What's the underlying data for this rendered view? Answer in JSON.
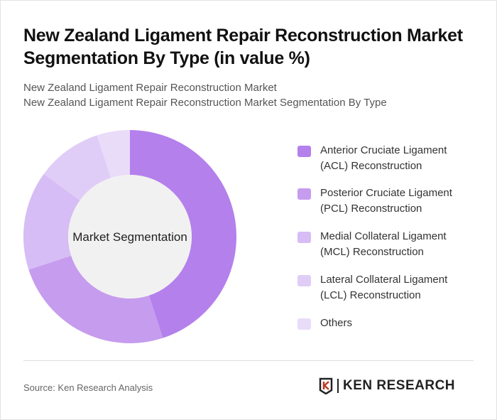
{
  "title": "New Zealand Ligament Repair Reconstruction Market Segmentation By Type (in value %)",
  "subtitle1": "New Zealand Ligament Repair Reconstruction Market",
  "subtitle2": "New Zealand Ligament Repair Reconstruction Market Segmentation By Type",
  "source": "Source: Ken Research Analysis",
  "logo_text": "KEN RESEARCH",
  "chart_data": {
    "type": "pie",
    "variant": "donut",
    "center_label": "Market Segmentation",
    "legend_position": "right",
    "categories": [
      "Anterior Cruciate Ligament (ACL) Reconstruction",
      "Posterior Cruciate Ligament (PCL) Reconstruction",
      "Medial Collateral Ligament (MCL) Reconstruction",
      "Lateral Collateral Ligament (LCL) Reconstruction",
      "Others"
    ],
    "values": [
      45,
      25,
      15,
      10,
      5
    ],
    "colors": [
      "#b480ec",
      "#c69cee",
      "#d6bdf5",
      "#e0cdf7",
      "#e8dcf9"
    ]
  }
}
